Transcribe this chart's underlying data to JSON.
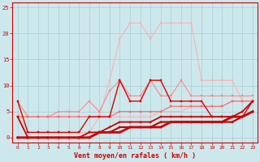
{
  "x": [
    0,
    1,
    2,
    3,
    4,
    5,
    6,
    7,
    8,
    9,
    10,
    11,
    12,
    13,
    14,
    15,
    16,
    17,
    18,
    19,
    20,
    21,
    22,
    23
  ],
  "series": [
    {
      "name": "lightest_pink_high",
      "color": "#ffb0b0",
      "linewidth": 0.8,
      "marker": "s",
      "markersize": 2.0,
      "y": [
        5,
        1,
        1,
        1,
        1,
        1,
        1,
        1,
        4,
        11,
        19,
        22,
        22,
        19,
        22,
        22,
        22,
        22,
        11,
        11,
        11,
        11,
        7,
        7
      ]
    },
    {
      "name": "medium_pink",
      "color": "#ff8888",
      "linewidth": 0.8,
      "marker": "s",
      "markersize": 2.0,
      "y": [
        7,
        4,
        4,
        4,
        5,
        5,
        5,
        7,
        5,
        9,
        11,
        8,
        8,
        11,
        8,
        8,
        11,
        8,
        8,
        8,
        8,
        8,
        8,
        8
      ]
    },
    {
      "name": "light_pink_flat",
      "color": "#ffb0b0",
      "linewidth": 0.8,
      "marker": "s",
      "markersize": 2.0,
      "y": [
        4,
        4,
        4,
        4,
        4,
        4,
        4,
        4,
        4,
        4,
        4,
        4,
        4,
        4,
        5,
        5,
        5,
        6,
        6,
        6,
        6,
        7,
        7,
        7
      ]
    },
    {
      "name": "salmon_diagonal",
      "color": "#ff6666",
      "linewidth": 0.8,
      "marker": "s",
      "markersize": 2.0,
      "y": [
        4,
        4,
        4,
        4,
        4,
        4,
        4,
        4,
        4,
        4,
        5,
        5,
        5,
        5,
        5,
        6,
        6,
        6,
        6,
        6,
        6,
        7,
        7,
        7
      ]
    },
    {
      "name": "dark_red_jagged",
      "color": "#dd0000",
      "linewidth": 1.0,
      "marker": "s",
      "markersize": 2.0,
      "y": [
        7,
        1,
        1,
        1,
        1,
        1,
        1,
        4,
        4,
        4,
        11,
        7,
        7,
        11,
        11,
        7,
        7,
        7,
        7,
        4,
        4,
        4,
        4,
        7
      ]
    },
    {
      "name": "dark_red_low_diagonal1",
      "color": "#cc0000",
      "linewidth": 1.3,
      "marker": "s",
      "markersize": 2.0,
      "y": [
        4,
        0,
        0,
        0,
        0,
        0,
        0,
        1,
        1,
        2,
        3,
        3,
        3,
        3,
        4,
        4,
        4,
        4,
        4,
        4,
        4,
        4,
        5,
        7
      ]
    },
    {
      "name": "dark_red_diagonal2",
      "color": "#bb0000",
      "linewidth": 1.5,
      "marker": "s",
      "markersize": 2.0,
      "y": [
        0,
        0,
        0,
        0,
        0,
        0,
        0,
        0,
        1,
        1,
        2,
        2,
        2,
        2,
        3,
        3,
        3,
        3,
        3,
        3,
        3,
        3,
        4,
        5
      ]
    },
    {
      "name": "dark_red_diagonal3",
      "color": "#cc0000",
      "linewidth": 2.0,
      "marker": "s",
      "markersize": 1.5,
      "y": [
        0,
        0,
        0,
        0,
        0,
        0,
        0,
        0,
        1,
        1,
        1,
        2,
        2,
        2,
        2,
        3,
        3,
        3,
        3,
        3,
        3,
        4,
        4,
        5
      ]
    }
  ],
  "xlabel": "Vent moyen/en rafales ( km/h )",
  "ylabel": "",
  "xlim": [
    -0.5,
    23.5
  ],
  "ylim": [
    -1,
    26
  ],
  "yticks": [
    0,
    5,
    10,
    15,
    20,
    25
  ],
  "xticks": [
    0,
    1,
    2,
    3,
    4,
    5,
    6,
    7,
    8,
    9,
    10,
    11,
    12,
    13,
    14,
    15,
    16,
    17,
    18,
    19,
    20,
    21,
    22,
    23
  ],
  "bg_color": "#cde8ed",
  "grid_color": "#a0c8cc",
  "tick_color": "#cc0000",
  "label_color": "#cc0000",
  "figsize": [
    3.2,
    2.0
  ],
  "dpi": 100
}
